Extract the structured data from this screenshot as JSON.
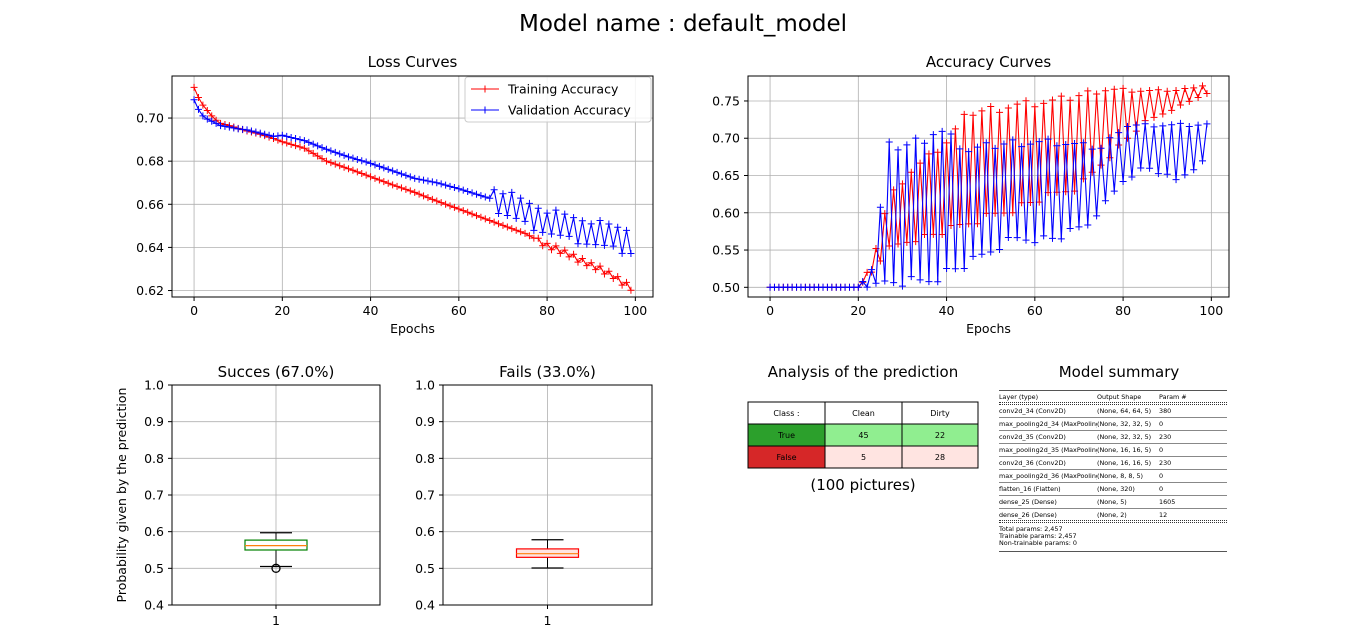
{
  "suptitle": "Model name : default_model",
  "colors": {
    "train": "#ff0000",
    "val": "#0000ff",
    "grid": "#b0b0b0",
    "true_cell": "#2ca02c",
    "false_cell": "#d62728",
    "true_light": "#90ee90",
    "false_light": "#ffe4e1"
  },
  "chart_data": [
    {
      "id": "loss",
      "type": "line",
      "title": "Loss Curves",
      "xlabel": "Epochs",
      "ylabel": "",
      "xlim": [
        -5,
        104
      ],
      "ylim": [
        0.617,
        0.7195
      ],
      "xticks": [
        0,
        20,
        40,
        60,
        80,
        100
      ],
      "yticks": [
        0.62,
        0.64,
        0.66,
        0.68,
        0.7
      ],
      "ytick_labels": [
        "0.62",
        "0.64",
        "0.66",
        "0.68",
        "0.70"
      ],
      "grid": true,
      "legend_position": "upper-right",
      "marker": "+",
      "series": [
        {
          "name": "Training Accuracy",
          "color": "#ff0000",
          "anchors": [
            [
              0,
              0.7142
            ],
            [
              1,
              0.7095
            ],
            [
              2,
              0.706
            ],
            [
              3,
              0.7035
            ],
            [
              4,
              0.701
            ],
            [
              5,
              0.699
            ],
            [
              6,
              0.6975
            ],
            [
              8,
              0.6965
            ],
            [
              10,
              0.6952
            ],
            [
              12,
              0.694
            ],
            [
              15,
              0.6925
            ],
            [
              18,
              0.6905
            ],
            [
              20,
              0.689
            ],
            [
              25,
              0.686
            ],
            [
              30,
              0.68
            ],
            [
              35,
              0.6765
            ],
            [
              40,
              0.6728
            ],
            [
              45,
              0.669
            ],
            [
              50,
              0.6655
            ],
            [
              55,
              0.6615
            ],
            [
              60,
              0.6578
            ],
            [
              65,
              0.654
            ],
            [
              70,
              0.6502
            ],
            [
              75,
              0.6465
            ],
            [
              80,
              0.641
            ],
            [
              85,
              0.6365
            ],
            [
              90,
              0.632
            ],
            [
              95,
              0.6265
            ],
            [
              99,
              0.6215
            ]
          ],
          "wiggle_from": 78,
          "wiggle_amp": 0.0015
        },
        {
          "name": "Validation Accuracy",
          "color": "#0000ff",
          "anchors": [
            [
              0,
              0.7085
            ],
            [
              1,
              0.704
            ],
            [
              2,
              0.701
            ],
            [
              3,
              0.6995
            ],
            [
              4,
              0.6985
            ],
            [
              5,
              0.6975
            ],
            [
              6,
              0.6965
            ],
            [
              8,
              0.6958
            ],
            [
              10,
              0.695
            ],
            [
              12,
              0.6945
            ],
            [
              15,
              0.693
            ],
            [
              18,
              0.6915
            ],
            [
              20,
              0.692
            ],
            [
              25,
              0.6895
            ],
            [
              30,
              0.6855
            ],
            [
              35,
              0.682
            ],
            [
              40,
              0.679
            ],
            [
              45,
              0.6755
            ],
            [
              50,
              0.672
            ],
            [
              55,
              0.67
            ],
            [
              60,
              0.6672
            ],
            [
              65,
              0.664
            ],
            [
              70,
              0.661
            ],
            [
              75,
              0.656
            ],
            [
              80,
              0.652
            ],
            [
              85,
              0.649
            ],
            [
              90,
              0.647
            ],
            [
              95,
              0.6445
            ],
            [
              99,
              0.643
            ]
          ],
          "wiggle_from": 68,
          "wiggle_amp": 0.0065
        }
      ]
    },
    {
      "id": "accuracy",
      "type": "line",
      "title": "Accuracy Curves",
      "xlabel": "Epochs",
      "ylabel": "",
      "xlim": [
        -5,
        104
      ],
      "ylim": [
        0.487,
        0.7835
      ],
      "xticks": [
        0,
        20,
        40,
        60,
        80,
        100
      ],
      "yticks": [
        0.5,
        0.55,
        0.6,
        0.65,
        0.7,
        0.75
      ],
      "ytick_labels": [
        "0.50",
        "0.55",
        "0.60",
        "0.65",
        "0.70",
        "0.75"
      ],
      "grid": true,
      "marker": "+",
      "series": [
        {
          "color": "#ff0000",
          "low": [
            [
              0,
              0.5
            ],
            [
              20,
              0.5
            ],
            [
              23,
              0.52
            ],
            [
              27,
              0.55
            ],
            [
              32,
              0.56
            ],
            [
              40,
              0.57
            ],
            [
              50,
              0.59
            ],
            [
              60,
              0.61
            ],
            [
              70,
              0.63
            ],
            [
              78,
              0.68
            ],
            [
              85,
              0.72
            ],
            [
              92,
              0.74
            ],
            [
              99,
              0.76
            ]
          ],
          "high": [
            [
              0,
              0.5
            ],
            [
              20,
              0.5
            ],
            [
              23,
              0.53
            ],
            [
              27,
              0.625
            ],
            [
              32,
              0.66
            ],
            [
              40,
              0.7
            ],
            [
              45,
              0.74
            ],
            [
              55,
              0.75
            ],
            [
              65,
              0.755
            ],
            [
              75,
              0.77
            ],
            [
              85,
              0.765
            ],
            [
              92,
              0.765
            ],
            [
              99,
              0.772
            ]
          ],
          "flat_until": 20
        },
        {
          "color": "#0000ff",
          "low": [
            [
              0,
              0.5
            ],
            [
              20,
              0.5
            ],
            [
              25,
              0.5
            ],
            [
              35,
              0.5
            ],
            [
              45,
              0.525
            ],
            [
              55,
              0.56
            ],
            [
              65,
              0.56
            ],
            [
              72,
              0.58
            ],
            [
              80,
              0.64
            ],
            [
              85,
              0.66
            ],
            [
              92,
              0.64
            ],
            [
              99,
              0.67
            ]
          ],
          "high": [
            [
              0,
              0.5
            ],
            [
              20,
              0.5
            ],
            [
              23,
              0.525
            ],
            [
              27,
              0.695
            ],
            [
              32,
              0.7
            ],
            [
              38,
              0.72
            ],
            [
              45,
              0.69
            ],
            [
              55,
              0.7
            ],
            [
              65,
              0.7
            ],
            [
              75,
              0.69
            ],
            [
              80,
              0.72
            ],
            [
              90,
              0.72
            ],
            [
              99,
              0.72
            ]
          ],
          "flat_until": 20
        }
      ]
    },
    {
      "id": "success_box",
      "type": "box",
      "title": "Succes (67.0%)",
      "ylabel": "Probability given by the prediction",
      "ylim": [
        0.4,
        1.0
      ],
      "yticks": [
        0.4,
        0.5,
        0.6,
        0.7,
        0.8,
        0.9,
        1.0
      ],
      "ytick_labels": [
        "0.4",
        "0.5",
        "0.6",
        "0.7",
        "0.8",
        "0.9",
        "1.0"
      ],
      "xtick_labels": [
        "1"
      ],
      "grid": true,
      "box": {
        "whislo": 0.505,
        "q1": 0.55,
        "med": 0.562,
        "q3": 0.577,
        "whishi": 0.597,
        "fliers": [
          0.5
        ]
      },
      "box_color": "#008000"
    },
    {
      "id": "fails_box",
      "type": "box",
      "title": "Fails (33.0%)",
      "ylabel": "",
      "ylim": [
        0.4,
        1.0
      ],
      "yticks": [
        0.4,
        0.5,
        0.6,
        0.7,
        0.8,
        0.9,
        1.0
      ],
      "ytick_labels": [
        "0.4",
        "0.5",
        "0.6",
        "0.7",
        "0.8",
        "0.9",
        "1.0"
      ],
      "xtick_labels": [
        "1"
      ],
      "grid": true,
      "box": {
        "whislo": 0.501,
        "q1": 0.53,
        "med": 0.54,
        "q3": 0.553,
        "whishi": 0.578,
        "fliers": []
      },
      "box_color": "#ff0000",
      "box_fill": "#ffe4e1"
    },
    {
      "id": "prediction_table",
      "type": "table",
      "title": "Analysis of the prediction",
      "columns": [
        "Class :",
        "Clean",
        "Dirty"
      ],
      "rows": [
        {
          "label": "True",
          "values": [
            45,
            22
          ]
        },
        {
          "label": "False",
          "values": [
            5,
            28
          ]
        }
      ],
      "caption": "(100 pictures)"
    }
  ],
  "summary": {
    "title": "Model summary",
    "header": [
      "Layer (type)",
      "Output Shape",
      "Param #"
    ],
    "layers": [
      [
        "conv2d_34 (Conv2D)",
        "(None, 64, 64, 5)",
        "380"
      ],
      [
        "max_pooling2d_34 (MaxPooling",
        "(None, 32, 32, 5)",
        "0"
      ],
      [
        "conv2d_35 (Conv2D)",
        "(None, 32, 32, 5)",
        "230"
      ],
      [
        "max_pooling2d_35 (MaxPooling",
        "(None, 16, 16, 5)",
        "0"
      ],
      [
        "conv2d_36 (Conv2D)",
        "(None, 16, 16, 5)",
        "230"
      ],
      [
        "max_pooling2d_36 (MaxPooling",
        "(None, 8, 8, 5)",
        "0"
      ],
      [
        "flatten_16 (Flatten)",
        "(None, 320)",
        "0"
      ],
      [
        "dense_25 (Dense)",
        "(None, 5)",
        "1605"
      ],
      [
        "dense_26 (Dense)",
        "(None, 2)",
        "12"
      ]
    ],
    "total": "Total params: 2,457",
    "trainable": "Trainable params: 2,457",
    "non_trainable": "Non-trainable params: 0"
  }
}
